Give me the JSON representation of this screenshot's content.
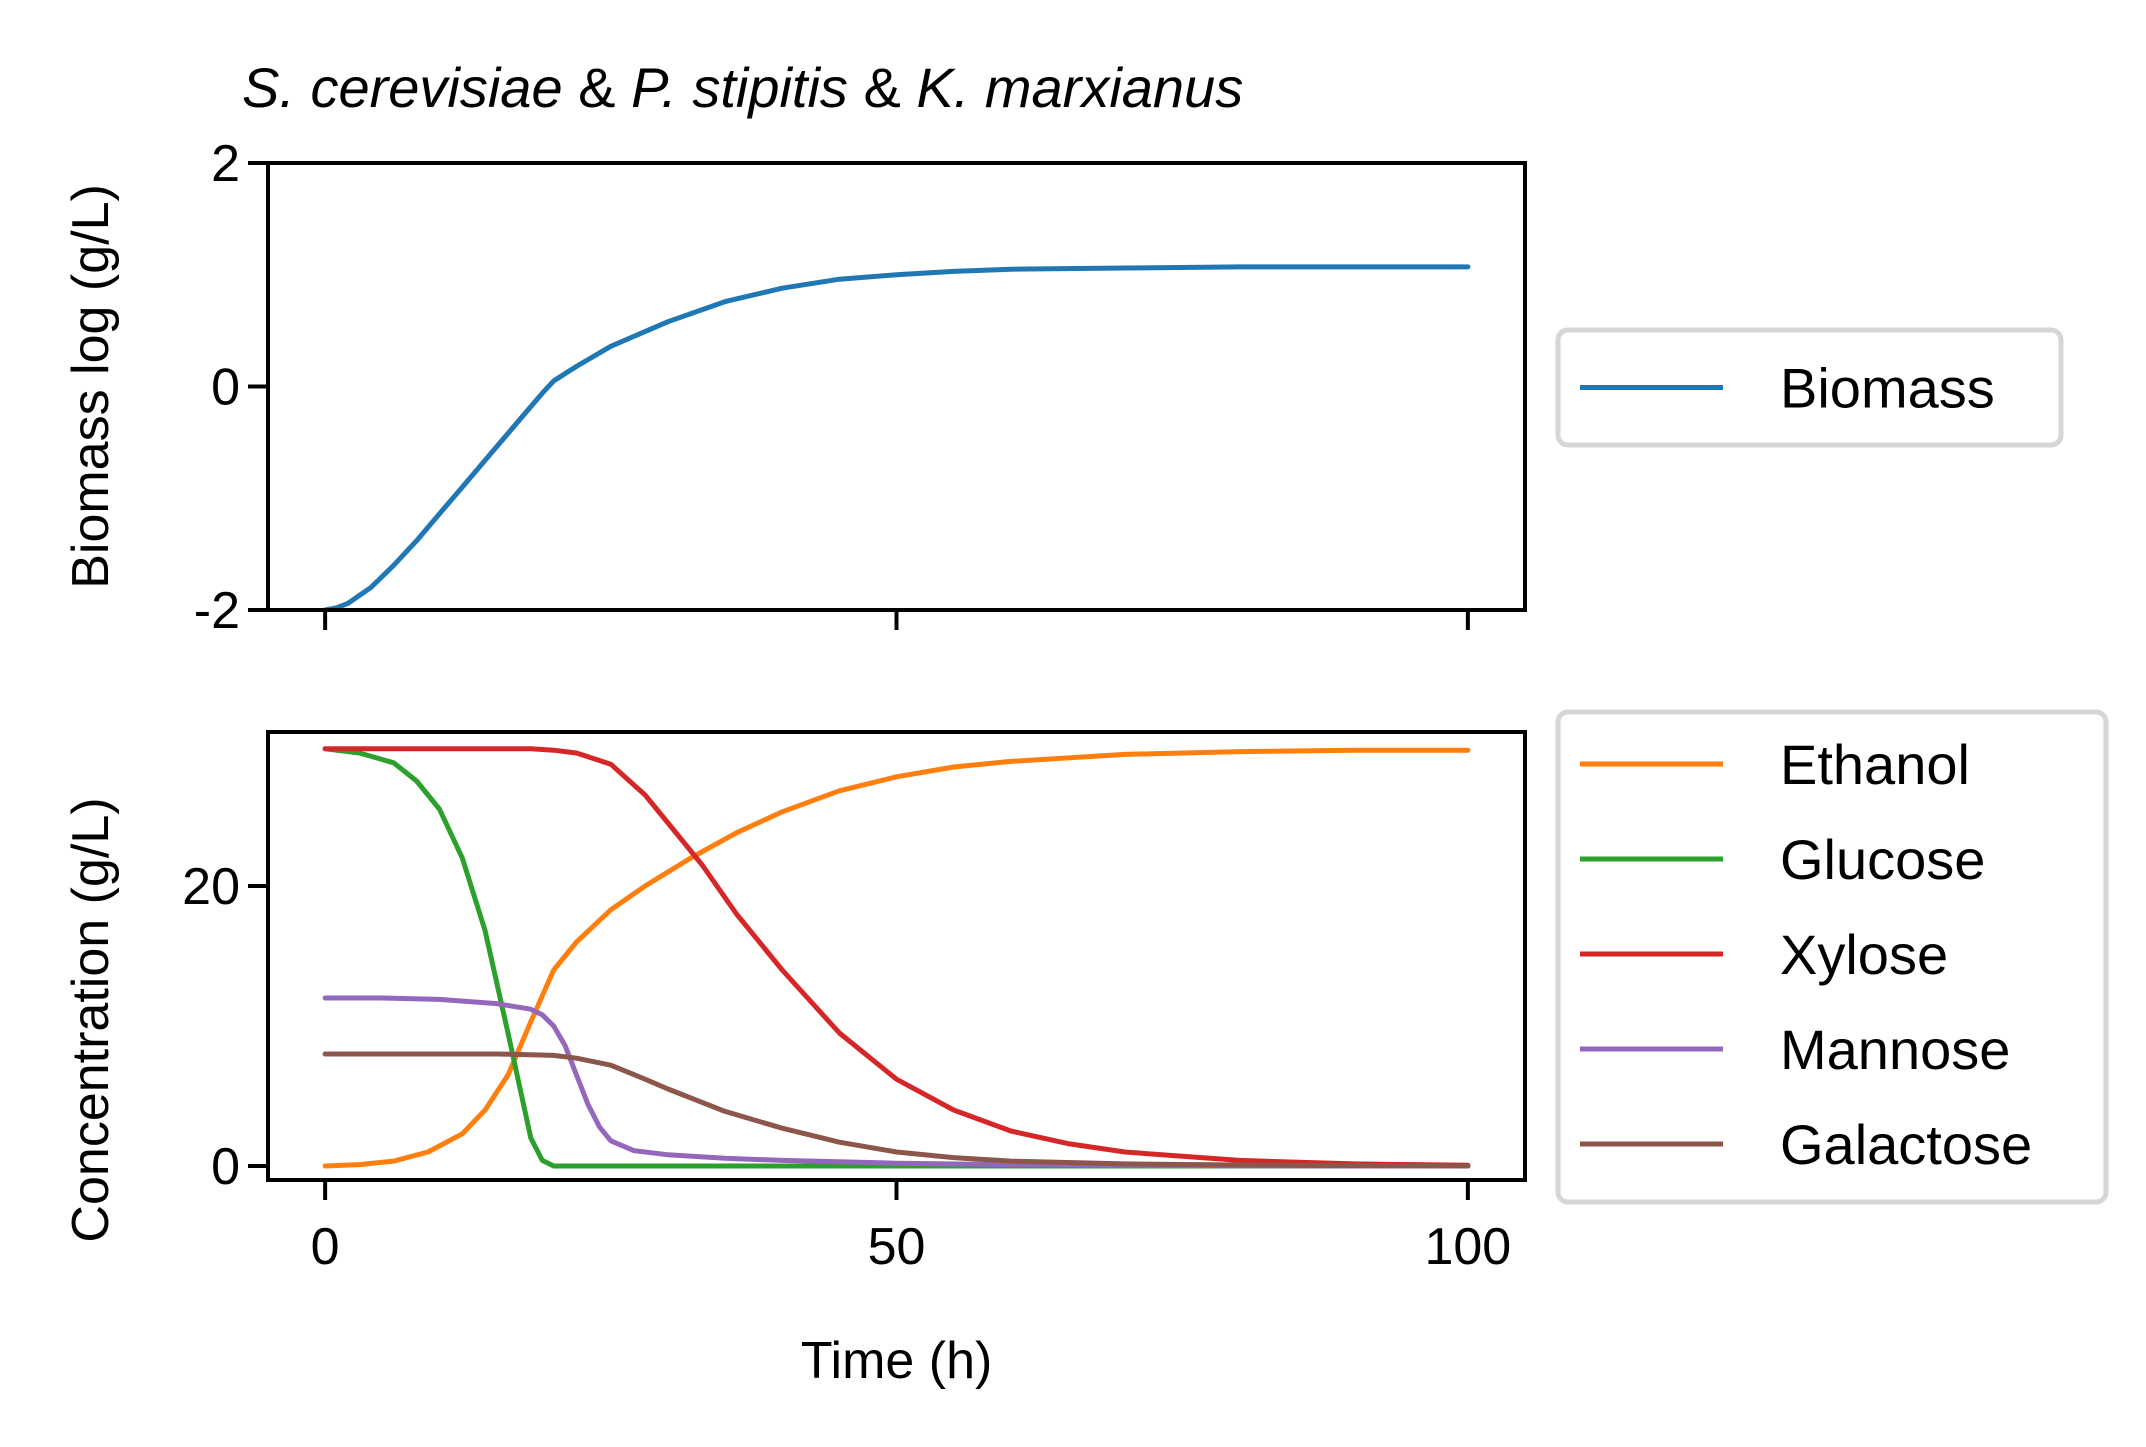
{
  "chart_data": [
    {
      "type": "line",
      "title_parts": [
        {
          "text": "S.",
          "italic": true
        },
        {
          "text": " cerevisiae",
          "italic": true
        },
        {
          "text": " & ",
          "italic": false
        },
        {
          "text": "P.",
          "italic": true
        },
        {
          "text": " stipitis",
          "italic": true
        },
        {
          "text": " & ",
          "italic": false
        },
        {
          "text": "K.",
          "italic": true
        },
        {
          "text": " marxianus",
          "italic": true
        }
      ],
      "ylabel": "Biomass log (g/L)",
      "xlabel": "",
      "xlim": [
        -5,
        105
      ],
      "ylim": [
        -2,
        2
      ],
      "yticks": [
        -2,
        0,
        2
      ],
      "ytick_labels": [
        "-2",
        "0",
        "2"
      ],
      "xticks": [
        0,
        50,
        100
      ],
      "xtick_labels_visible": false,
      "grid": false,
      "legend_position": "right",
      "series": [
        {
          "name": "Biomass",
          "color": "#1f77b4",
          "x": [
            0,
            1,
            2,
            4,
            6,
            8,
            10,
            12,
            14,
            16,
            18,
            19,
            20,
            22,
            25,
            30,
            35,
            40,
            45,
            50,
            55,
            60,
            70,
            80,
            90,
            100
          ],
          "y": [
            -2.0,
            -1.98,
            -1.94,
            -1.8,
            -1.6,
            -1.38,
            -1.14,
            -0.9,
            -0.66,
            -0.42,
            -0.18,
            -0.06,
            0.05,
            0.18,
            0.36,
            0.58,
            0.76,
            0.88,
            0.96,
            1.0,
            1.03,
            1.05,
            1.06,
            1.07,
            1.07,
            1.07
          ]
        }
      ]
    },
    {
      "type": "line",
      "ylabel": "Concentration (g/L)",
      "xlabel": "Time (h)",
      "xlim": [
        -5,
        105
      ],
      "ylim": [
        -1,
        31
      ],
      "yticks": [
        0,
        20
      ],
      "ytick_labels": [
        "0",
        "20"
      ],
      "xticks": [
        0,
        50,
        100
      ],
      "xtick_labels": [
        "0",
        "50",
        "100"
      ],
      "grid": false,
      "legend_position": "right",
      "series": [
        {
          "name": "Ethanol",
          "color": "#ff7f0e",
          "x": [
            0,
            3,
            6,
            9,
            12,
            14,
            16,
            18,
            20,
            22,
            25,
            28,
            32,
            36,
            40,
            45,
            50,
            55,
            60,
            70,
            80,
            90,
            100
          ],
          "y": [
            0.0,
            0.1,
            0.35,
            1.0,
            2.3,
            4.0,
            6.5,
            10.3,
            14.0,
            16.0,
            18.3,
            20.0,
            22.0,
            23.8,
            25.3,
            26.8,
            27.8,
            28.5,
            28.9,
            29.4,
            29.6,
            29.7,
            29.7
          ]
        },
        {
          "name": "Glucose",
          "color": "#2ca02c",
          "x": [
            0,
            3,
            6,
            8,
            10,
            12,
            14,
            16,
            18,
            19,
            20,
            22,
            25,
            30,
            40,
            50,
            60,
            70,
            80,
            90,
            100
          ],
          "y": [
            29.8,
            29.5,
            28.8,
            27.5,
            25.5,
            22.0,
            16.8,
            9.5,
            2.0,
            0.4,
            0.0,
            0.0,
            0.0,
            0.0,
            0.0,
            0.0,
            0.0,
            0.0,
            0.0,
            0.0,
            0.0
          ]
        },
        {
          "name": "Xylose",
          "color": "#d62728",
          "x": [
            0,
            5,
            10,
            15,
            18,
            20,
            22,
            25,
            28,
            30,
            33,
            36,
            40,
            45,
            50,
            55,
            60,
            65,
            70,
            80,
            90,
            100
          ],
          "y": [
            29.8,
            29.8,
            29.8,
            29.8,
            29.8,
            29.7,
            29.5,
            28.7,
            26.5,
            24.5,
            21.5,
            18.0,
            14.0,
            9.5,
            6.2,
            4.0,
            2.5,
            1.6,
            1.0,
            0.4,
            0.15,
            0.05
          ]
        },
        {
          "name": "Mannose",
          "color": "#9467bd",
          "x": [
            0,
            5,
            10,
            15,
            18,
            19,
            20,
            21,
            22,
            23,
            24,
            25,
            27,
            30,
            35,
            40,
            50,
            60,
            70,
            80,
            90,
            100
          ],
          "y": [
            12.0,
            12.0,
            11.9,
            11.6,
            11.2,
            10.8,
            10.0,
            8.6,
            6.5,
            4.4,
            2.8,
            1.8,
            1.1,
            0.8,
            0.55,
            0.4,
            0.2,
            0.1,
            0.05,
            0.02,
            0.0,
            0.0
          ]
        },
        {
          "name": "Galactose",
          "color": "#8c564b",
          "x": [
            0,
            5,
            10,
            15,
            18,
            20,
            22,
            25,
            28,
            30,
            35,
            40,
            45,
            50,
            55,
            60,
            70,
            80,
            90,
            100
          ],
          "y": [
            8.0,
            8.0,
            8.0,
            8.0,
            7.95,
            7.9,
            7.7,
            7.2,
            6.2,
            5.5,
            3.9,
            2.7,
            1.7,
            1.0,
            0.6,
            0.35,
            0.15,
            0.07,
            0.03,
            0.0
          ]
        }
      ]
    }
  ]
}
